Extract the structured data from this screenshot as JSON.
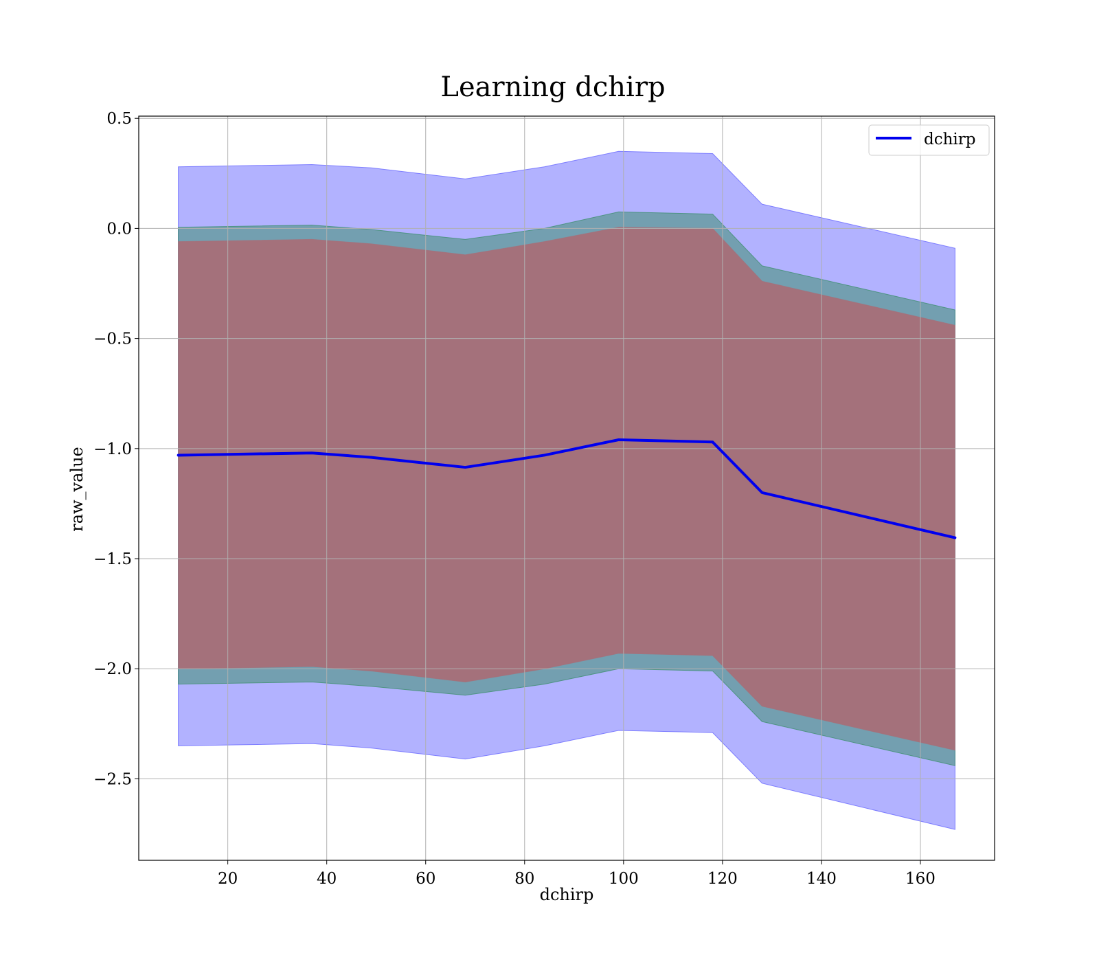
{
  "chart_data": {
    "type": "area",
    "title": "Learning dchirp",
    "xlabel": "dchirp",
    "ylabel": "raw_value",
    "xlim": [
      2,
      175
    ],
    "ylim": [
      -2.87,
      0.51
    ],
    "xticks": [
      20,
      40,
      60,
      80,
      100,
      120,
      140,
      160
    ],
    "yticks": [
      0.5,
      0.0,
      -0.5,
      -1.0,
      -1.5,
      -2.0,
      -2.5
    ],
    "ytick_labels": [
      "0.5",
      "0.0",
      "−0.5",
      "−1.0",
      "−1.5",
      "−2.0",
      "−2.5"
    ],
    "grid": true,
    "legend": {
      "position": "top-right",
      "entries": [
        "dchirp"
      ]
    },
    "x": [
      10,
      37,
      49,
      68,
      84,
      99,
      118,
      128,
      167
    ],
    "series": [
      {
        "name": "dchirp",
        "color": "#0000ee",
        "values": [
          -1.03,
          -1.02,
          -1.04,
          -1.085,
          -1.03,
          -0.96,
          -0.97,
          -1.2,
          -1.405
        ]
      }
    ],
    "bands": [
      {
        "color": "#6666ff",
        "opacity": 0.5,
        "lower": [
          -2.35,
          -2.34,
          -2.36,
          -2.41,
          -2.35,
          -2.28,
          -2.29,
          -2.52,
          -2.73
        ],
        "upper": [
          0.28,
          0.29,
          0.275,
          0.225,
          0.28,
          0.35,
          0.34,
          0.11,
          -0.09
        ]
      },
      {
        "color": "#3f8f6f",
        "opacity": 0.55,
        "lower": [
          -2.07,
          -2.06,
          -2.08,
          -2.12,
          -2.07,
          -2.0,
          -2.01,
          -2.24,
          -2.44
        ],
        "upper": [
          0.005,
          0.015,
          -0.005,
          -0.05,
          0.0,
          0.075,
          0.065,
          -0.17,
          -0.37
        ]
      },
      {
        "color": "#a4717b",
        "opacity": 1.0,
        "lower": [
          -2.0,
          -1.99,
          -2.01,
          -2.06,
          -2.0,
          -1.93,
          -1.94,
          -2.17,
          -2.37
        ],
        "upper": [
          -0.06,
          -0.05,
          -0.07,
          -0.12,
          -0.06,
          0.005,
          0.0,
          -0.24,
          -0.44
        ]
      }
    ]
  }
}
